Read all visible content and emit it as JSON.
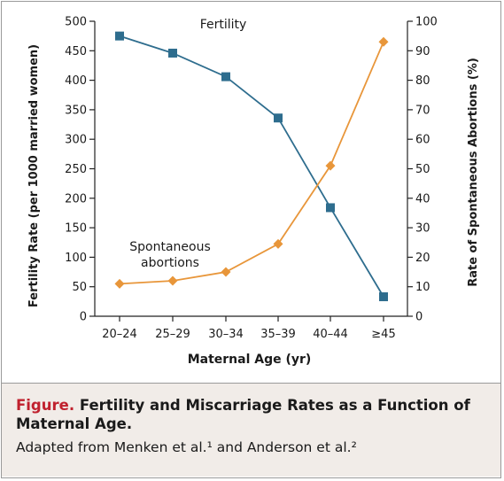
{
  "chart_data": {
    "type": "line",
    "categories": [
      "20–24",
      "25–29",
      "30–34",
      "35–39",
      "40–44",
      "≥45"
    ],
    "xlabel": "Maternal Age (yr)",
    "y_left": {
      "label": "Fertility Rate (per 1000 married women)",
      "range": [
        0,
        500
      ],
      "ticks": [
        0,
        50,
        100,
        150,
        200,
        250,
        300,
        350,
        400,
        450,
        500
      ]
    },
    "y_right": {
      "label": "Rate of Spontaneous Abortions (%)",
      "range": [
        0,
        100
      ],
      "ticks": [
        0,
        10,
        20,
        30,
        40,
        50,
        60,
        70,
        80,
        90,
        100
      ]
    },
    "series": [
      {
        "name": "Fertility",
        "axis": "left",
        "color": "#2e6d8e",
        "marker": "square",
        "values": [
          475,
          446,
          406,
          336,
          184,
          33
        ]
      },
      {
        "name": "Spontaneous abortions",
        "name_lines": [
          "Spontaneous",
          "abortions"
        ],
        "axis": "right",
        "color": "#e8963a",
        "marker": "diamond",
        "values": [
          11,
          12,
          15,
          24.5,
          51,
          93
        ]
      }
    ],
    "grid": false,
    "legend": "inline labels"
  },
  "caption": {
    "label": "Figure.",
    "title": "Fertility and Miscarriage Rates as a Function of Maternal Age.",
    "source": "Adapted from Menken et al.¹ and Anderson et al.²"
  }
}
